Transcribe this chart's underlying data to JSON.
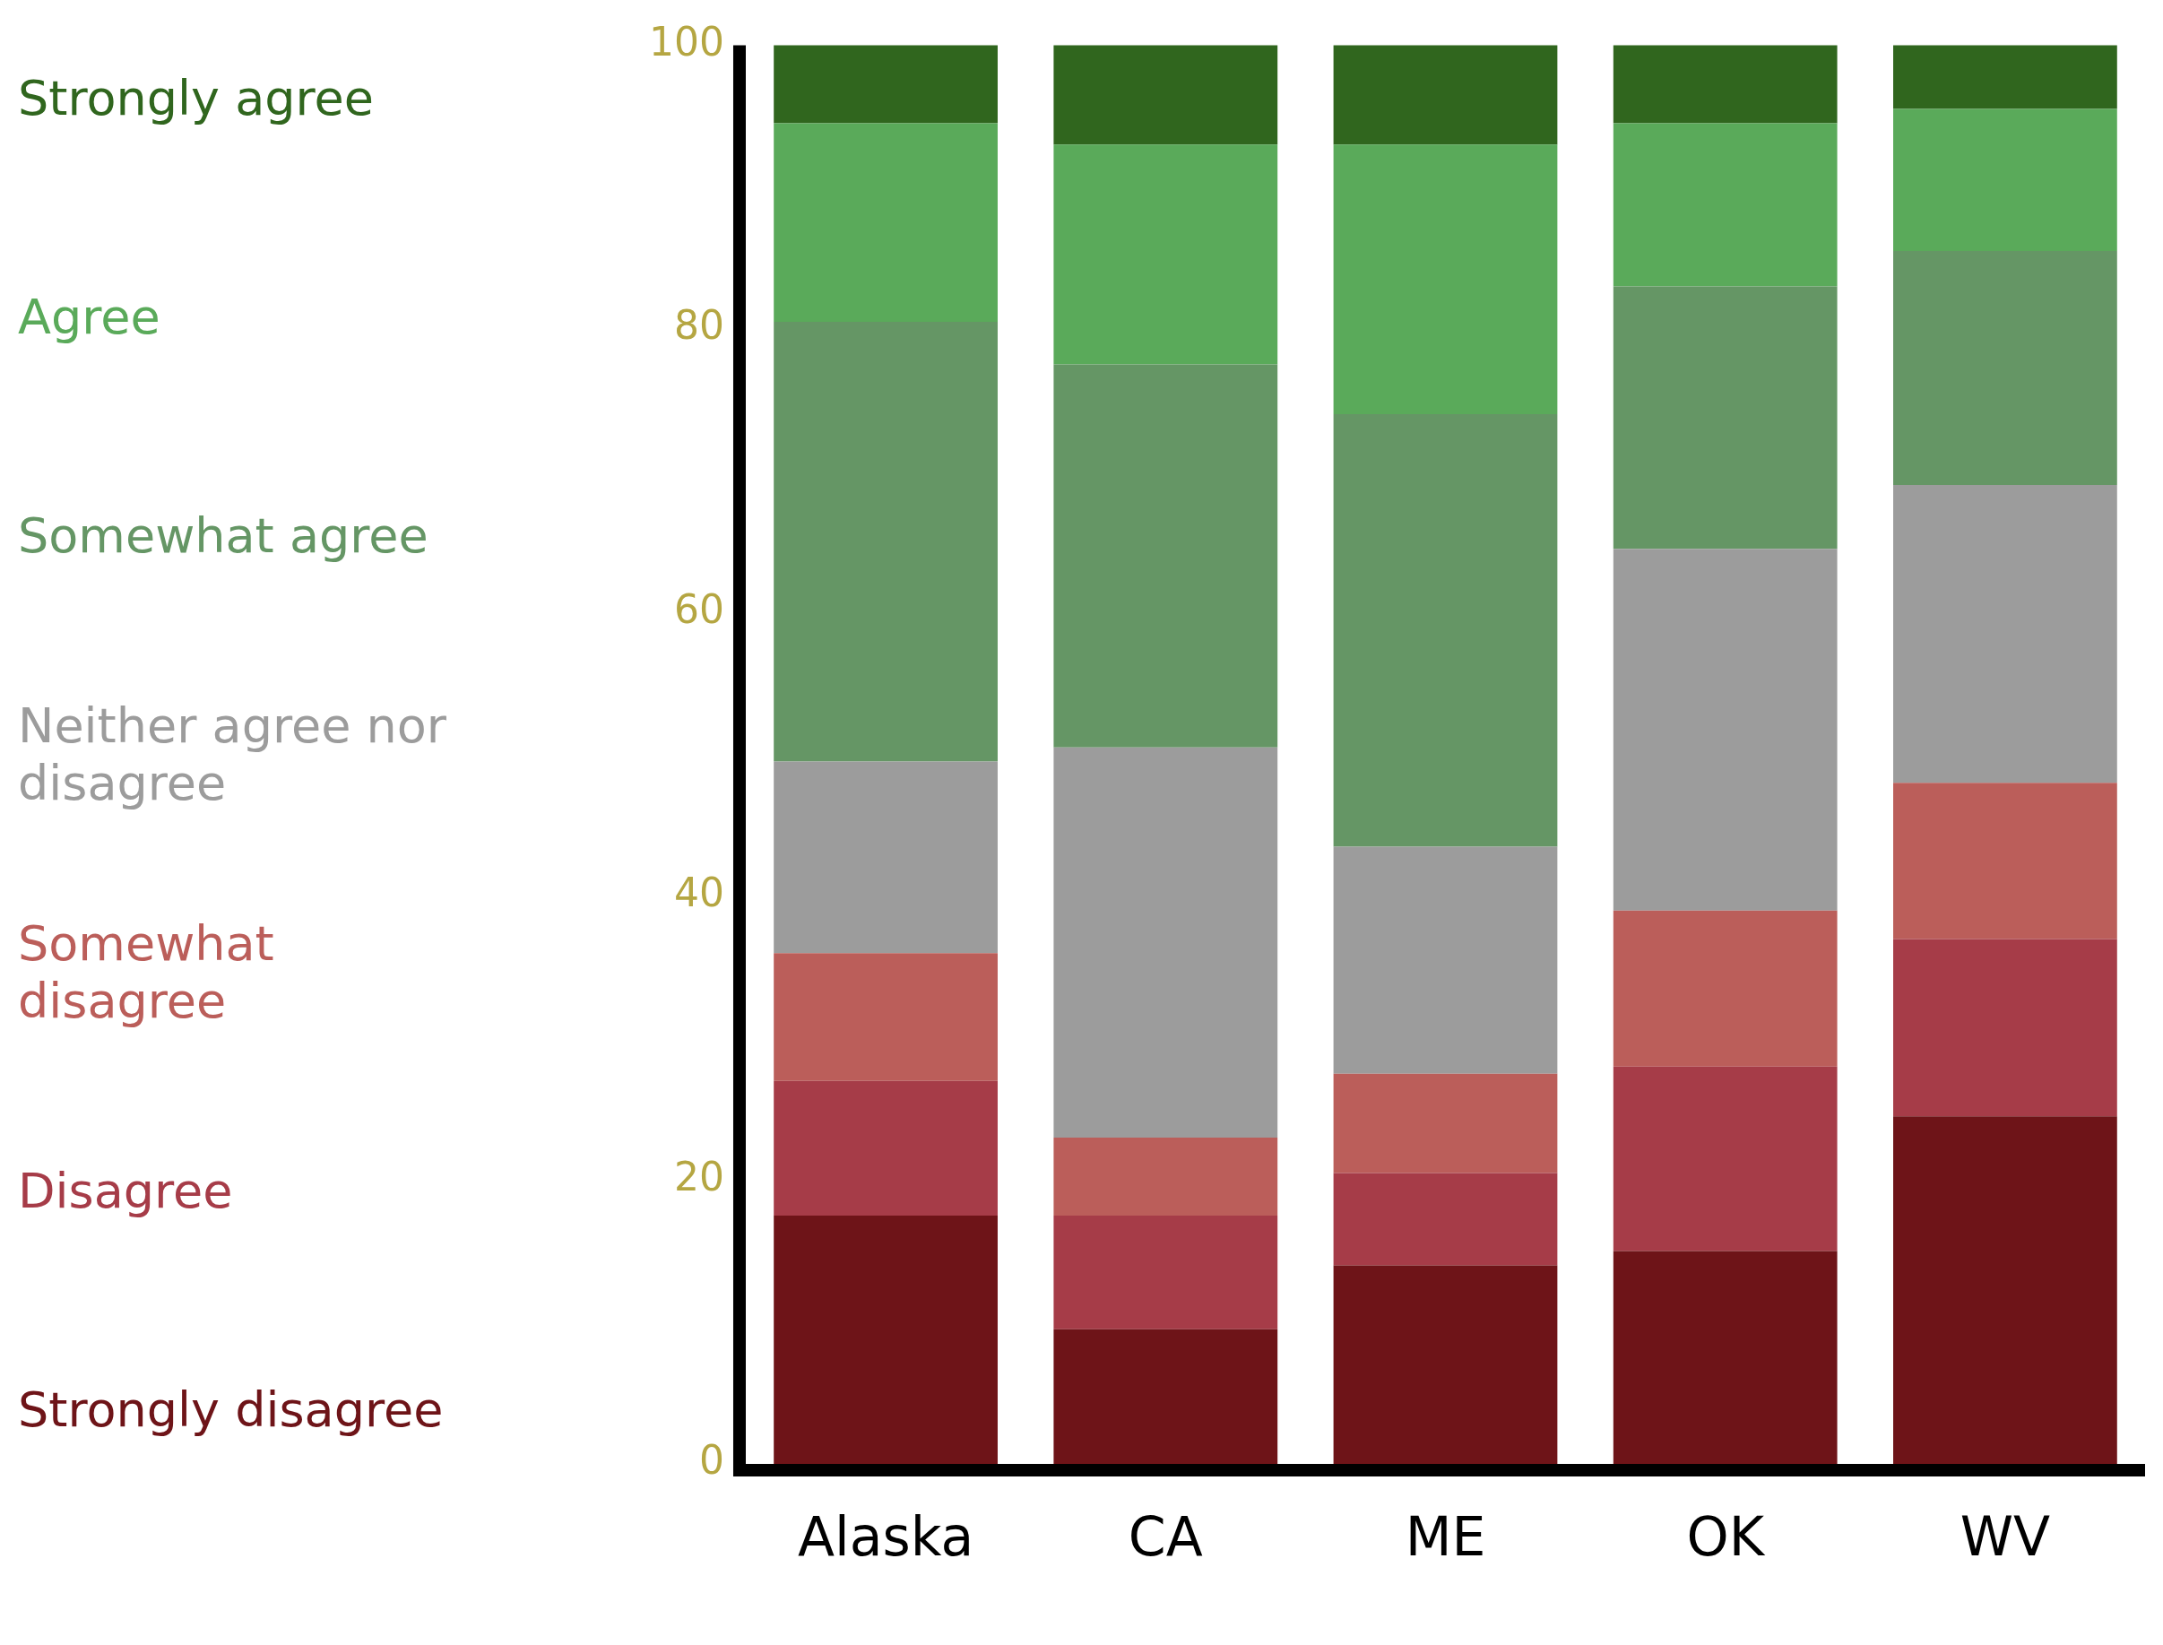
{
  "chart_data": {
    "type": "bar",
    "stacked": true,
    "categories": [
      "Alaska",
      "CA",
      "ME",
      "OK",
      "WV"
    ],
    "series": [
      {
        "name": "Strongly disagree",
        "color": "#6e1418",
        "values": [
          17.5,
          9.5,
          14,
          15,
          24.5
        ]
      },
      {
        "name": "Disagree",
        "color": "#a63c48",
        "values": [
          9.5,
          8,
          6.5,
          13,
          12.5
        ]
      },
      {
        "name": "Somewhat disagree",
        "color": "#bb5e5a",
        "values": [
          9,
          5.5,
          7,
          11,
          11
        ]
      },
      {
        "name": "Neither agree nor disagree",
        "color": "#9c9c9c",
        "values": [
          13.5,
          27.5,
          16,
          25.5,
          21
        ]
      },
      {
        "name": "Somewhat agree",
        "color": "#659665",
        "values": [
          31,
          27,
          30.5,
          18.5,
          16.5
        ]
      },
      {
        "name": "Agree",
        "color": "#5aaa5a",
        "values": [
          14,
          15.5,
          19,
          11.5,
          10
        ]
      },
      {
        "name": "Strongly agree",
        "color": "#30661e",
        "values": [
          5.5,
          7,
          7,
          5.5,
          4.5
        ]
      }
    ],
    "ylim": [
      0,
      100
    ],
    "yticks": [
      0,
      20,
      40,
      60,
      80,
      100
    ],
    "grid": false,
    "legend": "left"
  }
}
